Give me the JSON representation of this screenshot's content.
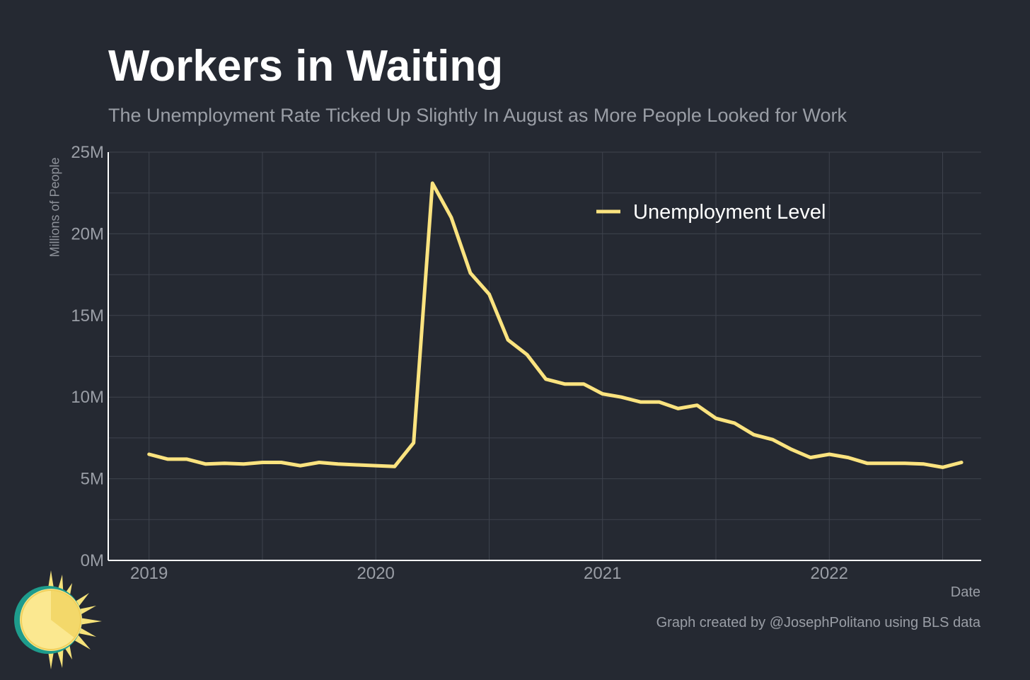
{
  "chart_data": {
    "type": "line",
    "title": "Workers in Waiting",
    "subtitle": "The Unemployment Rate Ticked Up Slightly In August as More People Looked for Work",
    "xlabel": "Date",
    "ylabel": "Millions of People",
    "ylim": [
      0,
      25
    ],
    "xlim": [
      2018.82,
      2022.67
    ],
    "y_ticks": [
      0,
      5,
      10,
      15,
      20,
      25
    ],
    "y_tick_labels": [
      "0M",
      "5M",
      "10M",
      "15M",
      "20M",
      "25M"
    ],
    "x_ticks": [
      2019,
      2020,
      2021,
      2022
    ],
    "x_tick_labels": [
      "2019",
      "2020",
      "2021",
      "2022"
    ],
    "grid": true,
    "legend": {
      "position": "top-right",
      "entries": [
        "Unemployment Level"
      ]
    },
    "series": [
      {
        "name": "Unemployment Level",
        "color": "#fbe37f",
        "x": [
          2019.0,
          2019.083,
          2019.167,
          2019.25,
          2019.333,
          2019.417,
          2019.5,
          2019.583,
          2019.667,
          2019.75,
          2019.833,
          2019.917,
          2020.0,
          2020.083,
          2020.167,
          2020.25,
          2020.333,
          2020.417,
          2020.5,
          2020.583,
          2020.667,
          2020.75,
          2020.833,
          2020.917,
          2021.0,
          2021.083,
          2021.167,
          2021.25,
          2021.333,
          2021.417,
          2021.5,
          2021.583,
          2021.667,
          2021.75,
          2021.833,
          2021.917,
          2022.0,
          2022.083,
          2022.167,
          2022.25,
          2022.333,
          2022.417,
          2022.5,
          2022.583
        ],
        "values": [
          6.5,
          6.2,
          6.2,
          5.9,
          5.95,
          5.9,
          6.0,
          6.0,
          5.8,
          6.0,
          5.9,
          5.85,
          5.8,
          5.75,
          7.2,
          23.1,
          21.0,
          17.6,
          16.3,
          13.5,
          12.6,
          11.1,
          10.8,
          10.8,
          10.2,
          10.0,
          9.7,
          9.7,
          9.3,
          9.5,
          8.7,
          8.4,
          7.7,
          7.4,
          6.8,
          6.3,
          6.5,
          6.3,
          5.95,
          5.95,
          5.95,
          5.9,
          5.7,
          6.0
        ]
      }
    ],
    "caption": "Graph created by @JosephPolitano using BLS data"
  },
  "colors": {
    "background": "#252932",
    "grid": "#3e434d",
    "axis": "#ffffff",
    "line": "#fbe37f",
    "text_muted": "#9a9ea6"
  },
  "logo": {
    "icon": "sun-icon"
  }
}
